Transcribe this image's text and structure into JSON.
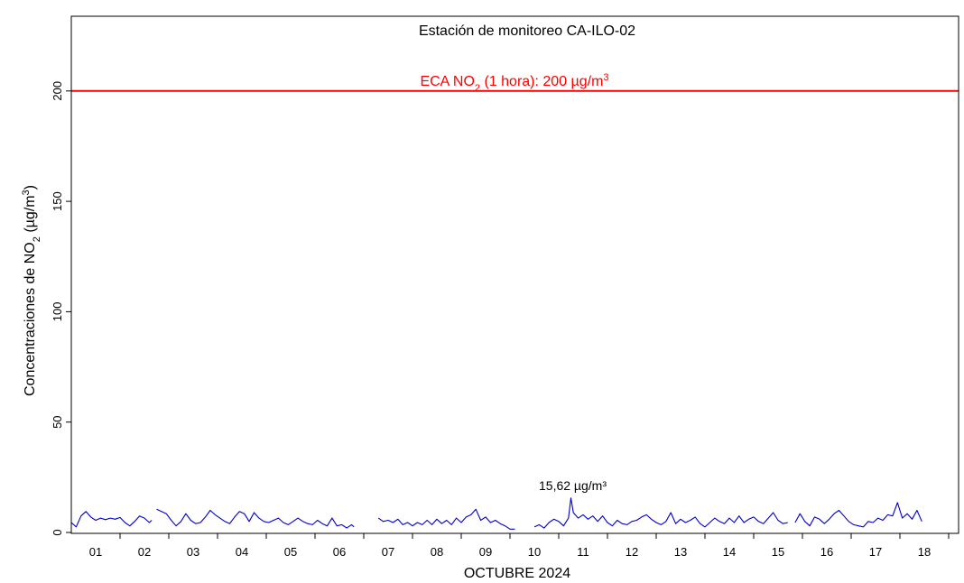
{
  "chart_data": {
    "type": "line",
    "title": "Estación de monitoreo  CA-ILO-02",
    "xlabel": "OCTUBRE 2024",
    "ylabel": {
      "pre": "Concentraciones de NO",
      "sub": "2",
      "mid": " (µg/m",
      "sup": "3",
      "post": ")"
    },
    "xlim": [
      0,
      18
    ],
    "ylim": [
      0,
      220
    ],
    "x_tick_labels": [
      "01",
      "02",
      "03",
      "04",
      "05",
      "06",
      "07",
      "08",
      "09",
      "10",
      "11",
      "12",
      "13",
      "14",
      "15",
      "16",
      "17",
      "18"
    ],
    "y_ticks": [
      0,
      50,
      100,
      150,
      200
    ],
    "y_tick_labels": [
      "0",
      "50",
      "100",
      "150",
      "200"
    ],
    "reference_line": {
      "value": 200,
      "color": "#ff0000",
      "label": {
        "pre": "ECA NO",
        "sub": "2",
        "mid": " (1 hora): 200 µg/m",
        "sup": "3"
      }
    },
    "annotation": {
      "text": "15,62 µg/m³",
      "x": 10.25,
      "y": 15.62
    },
    "series_color": "#0000cc",
    "series": [
      {
        "values": [
          [
            0.0,
            4.5
          ],
          [
            0.1,
            2.5
          ],
          [
            0.2,
            7.5
          ],
          [
            0.3,
            9.5
          ],
          [
            0.4,
            7.0
          ],
          [
            0.5,
            5.5
          ],
          [
            0.6,
            6.5
          ],
          [
            0.7,
            5.8
          ],
          [
            0.8,
            6.5
          ],
          [
            0.9,
            6.0
          ],
          [
            1.0,
            6.8
          ],
          [
            1.1,
            4.5
          ],
          [
            1.2,
            3.0
          ],
          [
            1.3,
            5.0
          ],
          [
            1.4,
            7.5
          ],
          [
            1.5,
            6.5
          ],
          [
            1.6,
            4.5
          ],
          [
            1.65,
            5.5
          ],
          null,
          [
            1.75,
            10.5
          ],
          [
            1.85,
            9.5
          ],
          [
            1.95,
            8.5
          ],
          [
            2.05,
            5.5
          ],
          [
            2.15,
            3.0
          ],
          [
            2.25,
            5.0
          ],
          [
            2.35,
            8.5
          ],
          [
            2.45,
            5.5
          ],
          [
            2.55,
            4.0
          ],
          [
            2.65,
            4.5
          ],
          [
            2.75,
            7.0
          ],
          [
            2.85,
            10.0
          ],
          [
            2.95,
            8.0
          ],
          [
            3.05,
            6.5
          ],
          [
            3.15,
            5.0
          ],
          [
            3.25,
            4.0
          ],
          [
            3.35,
            7.0
          ],
          [
            3.45,
            9.5
          ],
          [
            3.55,
            8.5
          ],
          [
            3.65,
            5.0
          ],
          [
            3.75,
            9.0
          ],
          [
            3.85,
            6.5
          ],
          [
            3.95,
            5.0
          ],
          [
            4.05,
            4.5
          ],
          [
            4.15,
            5.5
          ],
          [
            4.25,
            6.5
          ],
          [
            4.35,
            4.5
          ],
          [
            4.45,
            3.5
          ],
          [
            4.55,
            5.0
          ],
          [
            4.65,
            6.5
          ],
          [
            4.75,
            5.0
          ],
          [
            4.85,
            4.0
          ],
          [
            4.95,
            3.5
          ],
          [
            5.05,
            5.5
          ],
          [
            5.15,
            4.0
          ],
          [
            5.25,
            3.0
          ],
          [
            5.35,
            6.5
          ],
          [
            5.45,
            3.0
          ],
          [
            5.55,
            3.5
          ],
          [
            5.65,
            2.0
          ],
          [
            5.75,
            3.5
          ],
          [
            5.8,
            2.5
          ],
          null,
          [
            6.3,
            6.5
          ],
          [
            6.4,
            5.0
          ],
          [
            6.5,
            5.5
          ],
          [
            6.6,
            4.5
          ],
          [
            6.7,
            6.0
          ],
          [
            6.8,
            3.5
          ],
          [
            6.9,
            4.5
          ],
          [
            7.0,
            3.0
          ],
          [
            7.1,
            4.5
          ],
          [
            7.2,
            3.5
          ],
          [
            7.3,
            5.5
          ],
          [
            7.4,
            3.5
          ],
          [
            7.5,
            6.0
          ],
          [
            7.6,
            4.0
          ],
          [
            7.7,
            5.5
          ],
          [
            7.8,
            3.5
          ],
          [
            7.9,
            6.5
          ],
          [
            8.0,
            4.5
          ],
          [
            8.1,
            7.0
          ],
          [
            8.2,
            8.0
          ],
          [
            8.3,
            10.5
          ],
          [
            8.4,
            5.5
          ],
          [
            8.5,
            7.0
          ],
          [
            8.6,
            4.5
          ],
          [
            8.7,
            5.5
          ],
          [
            8.8,
            4.0
          ],
          [
            8.9,
            3.0
          ],
          [
            9.0,
            1.5
          ],
          [
            9.1,
            1.5
          ],
          null,
          [
            9.5,
            2.5
          ],
          [
            9.6,
            3.5
          ],
          [
            9.7,
            2.0
          ],
          [
            9.8,
            4.5
          ],
          [
            9.9,
            6.0
          ],
          [
            10.0,
            5.0
          ],
          [
            10.1,
            3.0
          ],
          [
            10.2,
            6.5
          ],
          [
            10.25,
            15.62
          ],
          [
            10.3,
            9.0
          ],
          [
            10.4,
            6.5
          ],
          [
            10.5,
            8.0
          ],
          [
            10.6,
            6.0
          ],
          [
            10.7,
            7.5
          ],
          [
            10.8,
            5.0
          ],
          [
            10.9,
            7.5
          ],
          [
            11.0,
            4.5
          ],
          [
            11.1,
            3.0
          ],
          [
            11.2,
            5.5
          ],
          [
            11.3,
            4.0
          ],
          [
            11.4,
            3.5
          ],
          [
            11.5,
            5.0
          ],
          [
            11.6,
            5.5
          ],
          [
            11.7,
            7.0
          ],
          [
            11.8,
            8.0
          ],
          [
            11.9,
            6.0
          ],
          [
            12.0,
            4.5
          ],
          [
            12.1,
            3.5
          ],
          [
            12.2,
            5.0
          ],
          [
            12.3,
            9.0
          ],
          [
            12.4,
            4.0
          ],
          [
            12.5,
            6.0
          ],
          [
            12.6,
            4.5
          ],
          [
            12.7,
            5.5
          ],
          [
            12.8,
            7.0
          ],
          [
            12.9,
            4.0
          ],
          [
            13.0,
            2.5
          ],
          [
            13.1,
            4.5
          ],
          [
            13.2,
            6.5
          ],
          [
            13.3,
            5.0
          ],
          [
            13.4,
            4.0
          ],
          [
            13.5,
            6.5
          ],
          [
            13.6,
            4.5
          ],
          [
            13.7,
            7.5
          ],
          [
            13.8,
            4.5
          ],
          [
            13.9,
            6.0
          ],
          [
            14.0,
            7.0
          ],
          [
            14.1,
            5.0
          ],
          [
            14.2,
            4.0
          ],
          [
            14.3,
            6.5
          ],
          [
            14.4,
            9.0
          ],
          [
            14.5,
            5.5
          ],
          [
            14.6,
            4.0
          ],
          [
            14.7,
            4.5
          ],
          null,
          [
            14.85,
            4.5
          ],
          [
            14.95,
            8.5
          ],
          [
            15.05,
            5.0
          ],
          [
            15.15,
            3.0
          ],
          [
            15.25,
            7.0
          ],
          [
            15.35,
            6.0
          ],
          [
            15.45,
            4.0
          ],
          [
            15.55,
            6.0
          ],
          [
            15.65,
            8.5
          ],
          [
            15.75,
            10.0
          ],
          [
            15.85,
            7.5
          ],
          [
            15.95,
            5.0
          ],
          [
            16.05,
            3.5
          ],
          [
            16.15,
            3.0
          ],
          [
            16.25,
            2.5
          ],
          [
            16.35,
            5.0
          ],
          [
            16.45,
            4.5
          ],
          [
            16.55,
            6.5
          ],
          [
            16.65,
            5.5
          ],
          [
            16.75,
            8.0
          ],
          [
            16.85,
            7.5
          ],
          [
            16.95,
            13.5
          ],
          [
            17.05,
            6.5
          ],
          [
            17.15,
            8.5
          ],
          [
            17.25,
            6.0
          ],
          [
            17.35,
            10.0
          ],
          [
            17.45,
            5.0
          ]
        ]
      }
    ]
  }
}
